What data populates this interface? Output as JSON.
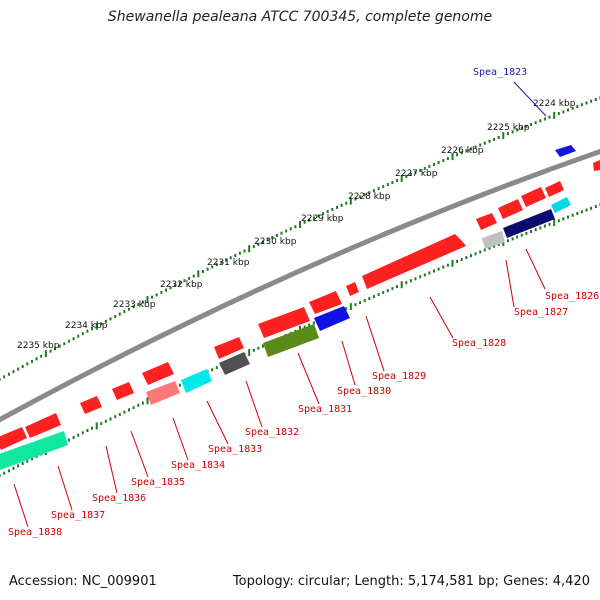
{
  "title": "Shewanella pealeana ATCC 700345, complete genome",
  "accession": "Accession: NC_009901",
  "summary": "Topology: circular; Length: 5,174,581 bp; Genes: 4,420",
  "colors": {
    "forward_gene": "#ff2020",
    "backbone": "#8a8a8a",
    "tick": "#1e7a1e",
    "label_red": "#cc0000",
    "label_blue": "#1a1aa8"
  },
  "kbp_labels": [
    "2224 kbp",
    "2225 kbp",
    "2226 kbp",
    "2227 kbp",
    "2228 kbp",
    "2229 kbp",
    "2230 kbp",
    "2231 kbp",
    "2232 kbp",
    "2233 kbp",
    "2234 kbp",
    "2235 kbp"
  ],
  "gene_labels": {
    "outer": [
      "Spea_1823"
    ],
    "inner": [
      "Spea_1826",
      "Spea_1827",
      "Spea_1828",
      "Spea_1829",
      "Spea_1830",
      "Spea_1831",
      "Spea_1832",
      "Spea_1833",
      "Spea_1834",
      "Spea_1835",
      "Spea_1836",
      "Spea_1837",
      "Spea_1838"
    ]
  }
}
